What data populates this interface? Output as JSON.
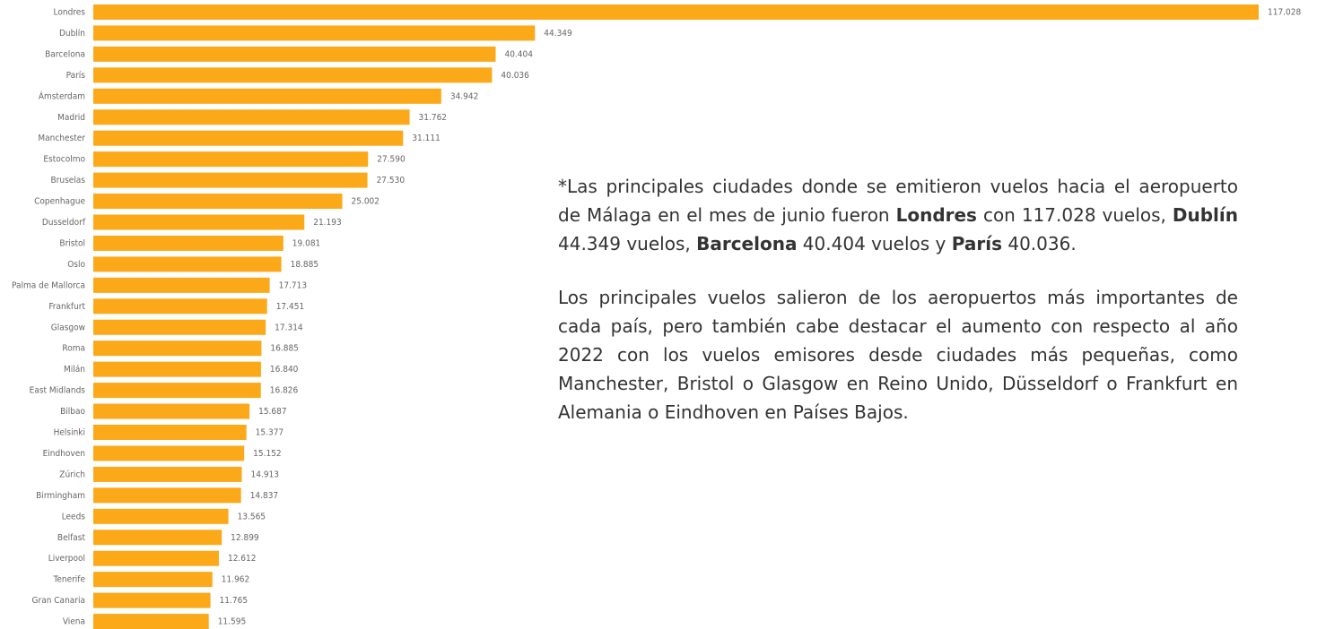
{
  "chart_data": {
    "type": "bar",
    "orientation": "horizontal",
    "color": "#FBA919",
    "categories": [
      "Londres",
      "Dublín",
      "Barcelona",
      "París",
      "Ámsterdam",
      "Madrid",
      "Manchester",
      "Estocolmo",
      "Bruselas",
      "Copenhague",
      "Dusseldorf",
      "Bristol",
      "Oslo",
      "Palma de Mallorca",
      "Frankfurt",
      "Glasgow",
      "Roma",
      "Milán",
      "East Midlands",
      "Bilbao",
      "Helsinki",
      "Eindhoven",
      "Zúrich",
      "Birmingham",
      "Leeds",
      "Belfast",
      "Liverpool",
      "Tenerife",
      "Gran Canaria",
      "Viena"
    ],
    "values": [
      117028,
      44349,
      40404,
      40036,
      34942,
      31762,
      31111,
      27590,
      27530,
      25002,
      21193,
      19081,
      18885,
      17713,
      17451,
      17314,
      16885,
      16840,
      16826,
      15687,
      15377,
      15152,
      14913,
      14837,
      13565,
      12899,
      12612,
      11962,
      11765,
      11595
    ],
    "value_labels": [
      "117.028",
      "44.349",
      "40.404",
      "40.036",
      "34.942",
      "31.762",
      "31.111",
      "27.590",
      "27.530",
      "25.002",
      "21.193",
      "19.081",
      "18.885",
      "17.713",
      "17.451",
      "17.314",
      "16.885",
      "16.840",
      "16.826",
      "15.687",
      "15.377",
      "15.152",
      "14.913",
      "14.837",
      "13.565",
      "12.899",
      "12.612",
      "11.962",
      "11.765",
      "11.595"
    ]
  },
  "annotations": [
    {
      "runs": [
        {
          "text": "*Las principales ciudades donde se emitieron vuelos hacia el aeropuerto de Málaga en el mes de junio fueron ",
          "bold": false
        },
        {
          "text": "Londres",
          "bold": true
        },
        {
          "text": " con 117.028 vuelos, ",
          "bold": false
        },
        {
          "text": "Dublín",
          "bold": true
        },
        {
          "text": " 44.349 vuelos, ",
          "bold": false
        },
        {
          "text": "Barcelona",
          "bold": true
        },
        {
          "text": " 40.404 vuelos y ",
          "bold": false
        },
        {
          "text": "París",
          "bold": true
        },
        {
          "text": " 40.036.",
          "bold": false
        }
      ]
    },
    {
      "runs": [
        {
          "text": "Los principales vuelos salieron de los aeropuertos más importantes de cada país, pero también cabe destacar el aumento con respecto al año 2022 con los vuelos emisores desde ciudades más pequeñas, como Manchester, Bristol o Glasgow en Reino Unido, Düsseldorf o Frankfurt en Alemania o Eindhoven en Países Bajos.",
          "bold": false
        }
      ]
    }
  ]
}
